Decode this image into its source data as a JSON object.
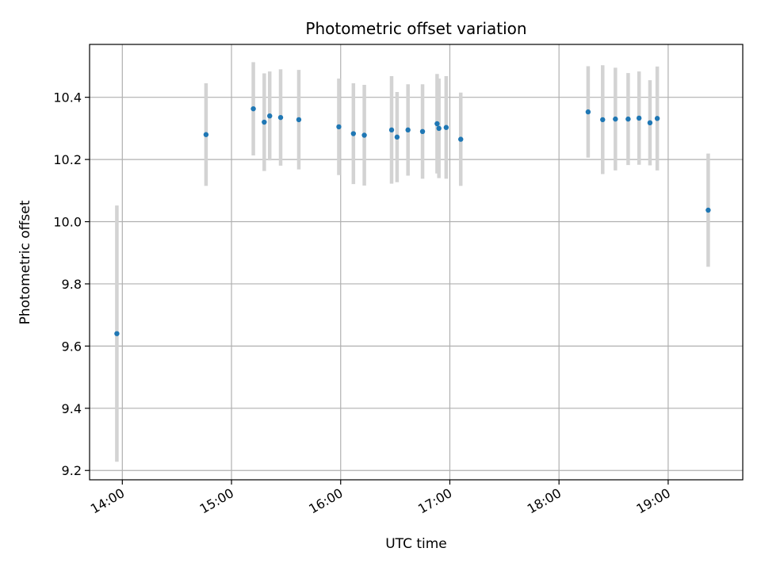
{
  "chart_data": {
    "type": "scatter",
    "title": "Photometric offset variation",
    "xlabel": "UTC time",
    "ylabel": "Photometric offset",
    "xlim": [
      "13:42",
      "19:41"
    ],
    "ylim": [
      9.17,
      10.57
    ],
    "grid": true,
    "x_ticks": [
      "14:00",
      "15:00",
      "16:00",
      "17:00",
      "18:00",
      "19:00"
    ],
    "y_ticks": [
      "9.2",
      "9.4",
      "9.6",
      "9.8",
      "10.0",
      "10.2",
      "10.4"
    ],
    "colors": {
      "marker": "#1f77b4",
      "errorbar": "#d3d3d3",
      "grid": "#b0b0b0"
    },
    "points": [
      {
        "x": "13:57",
        "y": 9.64,
        "err": 0.412
      },
      {
        "x": "14:46",
        "y": 10.28,
        "err": 0.165
      },
      {
        "x": "15:12",
        "y": 10.363,
        "err": 0.15
      },
      {
        "x": "15:18",
        "y": 10.32,
        "err": 0.157
      },
      {
        "x": "15:21",
        "y": 10.34,
        "err": 0.143
      },
      {
        "x": "15:27",
        "y": 10.335,
        "err": 0.155
      },
      {
        "x": "15:37",
        "y": 10.328,
        "err": 0.16
      },
      {
        "x": "15:59",
        "y": 10.305,
        "err": 0.155
      },
      {
        "x": "16:07",
        "y": 10.283,
        "err": 0.162
      },
      {
        "x": "16:13",
        "y": 10.278,
        "err": 0.162
      },
      {
        "x": "16:28",
        "y": 10.295,
        "err": 0.173
      },
      {
        "x": "16:31",
        "y": 10.272,
        "err": 0.145
      },
      {
        "x": "16:37",
        "y": 10.295,
        "err": 0.147
      },
      {
        "x": "16:45",
        "y": 10.29,
        "err": 0.152
      },
      {
        "x": "16:53",
        "y": 10.315,
        "err": 0.16
      },
      {
        "x": "16:54",
        "y": 10.3,
        "err": 0.16
      },
      {
        "x": "16:58",
        "y": 10.303,
        "err": 0.165
      },
      {
        "x": "17:06",
        "y": 10.265,
        "err": 0.15
      },
      {
        "x": "18:16",
        "y": 10.353,
        "err": 0.147
      },
      {
        "x": "18:24",
        "y": 10.328,
        "err": 0.175
      },
      {
        "x": "18:31",
        "y": 10.33,
        "err": 0.165
      },
      {
        "x": "18:38",
        "y": 10.33,
        "err": 0.148
      },
      {
        "x": "18:44",
        "y": 10.333,
        "err": 0.15
      },
      {
        "x": "18:50",
        "y": 10.318,
        "err": 0.137
      },
      {
        "x": "18:54",
        "y": 10.332,
        "err": 0.167
      },
      {
        "x": "19:22",
        "y": 10.037,
        "err": 0.182
      }
    ]
  }
}
